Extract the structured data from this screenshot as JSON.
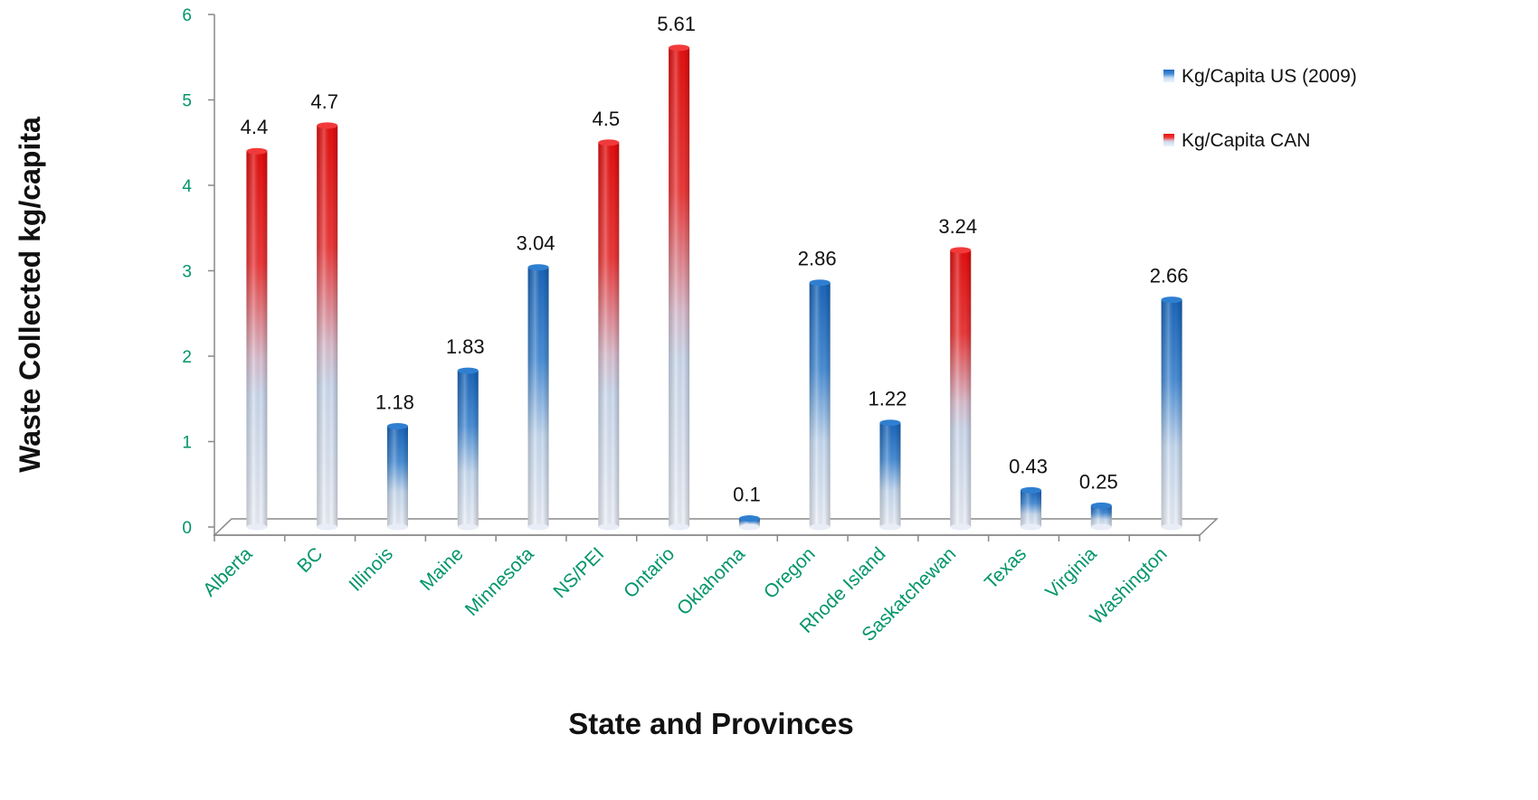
{
  "chart_data": {
    "type": "bar",
    "categories": [
      "Alberta",
      "BC",
      "Illinois",
      "Maine",
      "Minnesota",
      "NS/PEI",
      "Ontario",
      "Oklahoma",
      "Oregon",
      "Rhode Island",
      "Saskatchewan",
      "Texas",
      "Virginia",
      "Washington"
    ],
    "series": [
      {
        "name": "Kg/Capita US (2009)",
        "color": "#1f6fc0",
        "values": [
          null,
          null,
          1.18,
          1.83,
          3.04,
          null,
          null,
          0.1,
          2.86,
          1.22,
          null,
          0.43,
          0.25,
          2.66
        ]
      },
      {
        "name": "Kg/Capita CAN",
        "color": "#e81818",
        "values": [
          4.4,
          4.7,
          null,
          null,
          null,
          4.5,
          5.61,
          null,
          null,
          null,
          3.24,
          null,
          null,
          null
        ]
      }
    ],
    "data_labels": [
      "4.4",
      "4.7",
      "1.18",
      "1.83",
      "3.04",
      "4.5",
      "5.61",
      "0.1",
      "2.86",
      "1.22",
      "3.24",
      "0.43",
      "0.25",
      "2.66"
    ],
    "y_ticks": [
      "0",
      "1",
      "2",
      "3",
      "4",
      "5",
      "6"
    ],
    "ylim": [
      0,
      6
    ],
    "xlabel": "State and Provinces",
    "ylabel": "Waste Collected kg/capita",
    "grid": false,
    "legend_position": "top-right"
  }
}
